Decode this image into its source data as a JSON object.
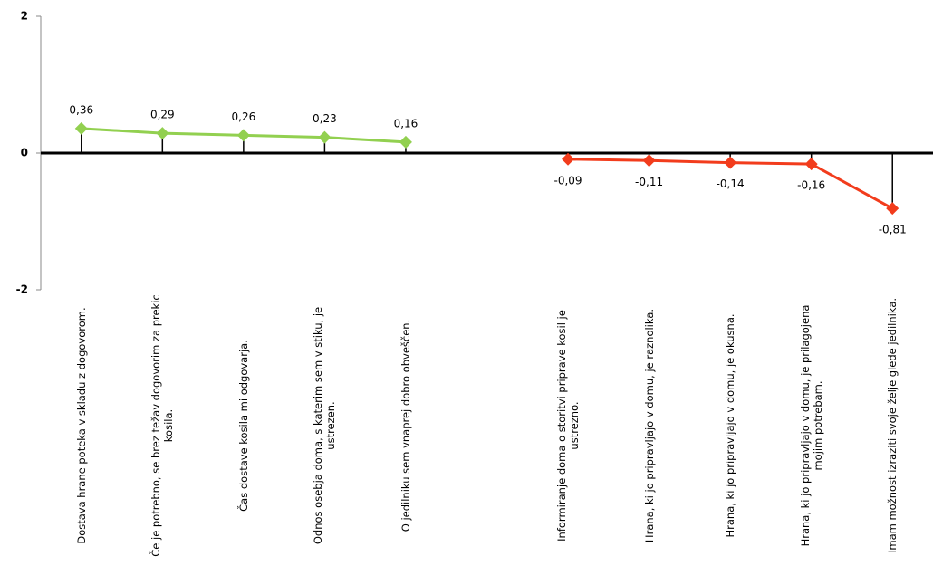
{
  "chart_data": {
    "type": "line",
    "categories": [
      "Dostava hrane poteka v skladu z dogovorom.",
      "Če je potrebno, se brez težav dogovorim za prekic kosila.",
      "Čas dostave kosila mi odgovarja.",
      "Odnos osebja doma, s katerim sem v stiku, je ustrezen.",
      "O jedilniku sem vnaprej dobro obveščen.",
      null,
      "Informiranje doma o storitvi priprave kosil je ustrezno.",
      "Hrana, ki jo pripravljajo v domu, je raznolika.",
      "Hrana, ki jo pripravljajo v domu, je okusna.",
      "Hrana, ki jo pripravljajo v domu, je prilagojena mojim potrebam.",
      "Imam možnost izraziti svoje želje glede jedilnika."
    ],
    "series": [
      {
        "color": "#92d050",
        "values": [
          0.36,
          0.29,
          0.26,
          0.23,
          0.16,
          null,
          null,
          null,
          null,
          null,
          null
        ],
        "value_labels": [
          "0,36",
          "0,29",
          "0,26",
          "0,23",
          "0,16",
          null,
          null,
          null,
          null,
          null,
          null
        ]
      },
      {
        "color": "#f23c1c",
        "values": [
          null,
          null,
          null,
          null,
          null,
          null,
          -0.09,
          -0.11,
          -0.14,
          -0.16,
          -0.81
        ],
        "value_labels": [
          null,
          null,
          null,
          null,
          null,
          null,
          "-0,09",
          "-0,11",
          "-0,14",
          "-0,16",
          "-0,81"
        ]
      }
    ],
    "ylim": [
      -2,
      2
    ],
    "yticks": [
      -2,
      0,
      2
    ]
  }
}
